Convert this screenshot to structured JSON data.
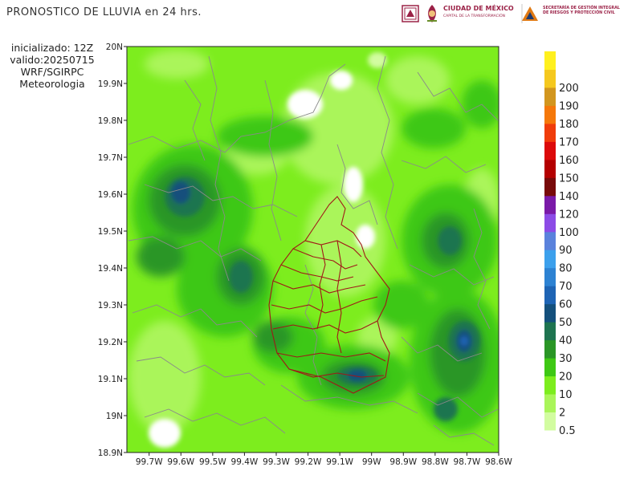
{
  "header": {
    "title": "PRONOSTICO DE LLUVIA en 24 hrs."
  },
  "run_info": {
    "line1": "inicializado: 12Z",
    "line2": "valido:20250715",
    "line3": "WRF/SGIRPC",
    "line4": "Meteorologia"
  },
  "logos": {
    "cdmx_name": "CIUDAD DE MÉXICO",
    "cdmx_tagline": "CAPITAL DE LA TRANSFORMACIÓN",
    "sgirpc_line1": "SECRETARÍA DE GESTIÓN INTEGRAL",
    "sgirpc_line2": "DE RIESGOS Y PROTECCIÓN CIVIL",
    "brand_color": "#9b2247"
  },
  "map": {
    "lat_ticks": [
      "20N",
      "19.9N",
      "19.8N",
      "19.7N",
      "19.6N",
      "19.5N",
      "19.4N",
      "19.3N",
      "19.2N",
      "19.1N",
      "19N",
      "18.9N"
    ],
    "lon_ticks": [
      "99.7W",
      "99.6W",
      "99.5W",
      "99.4W",
      "99.3W",
      "99.2W",
      "99.1W",
      "99W",
      "98.9W",
      "98.8W",
      "98.7W",
      "98.6W"
    ],
    "lat_range": [
      18.9,
      20.0
    ],
    "lon_range": [
      -99.77,
      -98.6
    ]
  },
  "legend": {
    "levels": [
      "0.5",
      "2",
      "10",
      "20",
      "30",
      "40",
      "50",
      "60",
      "70",
      "80",
      "90",
      "100",
      "120",
      "140",
      "150",
      "160",
      "170",
      "180",
      "190",
      "200"
    ],
    "colors": [
      "#d2fca0",
      "#aaf55a",
      "#7ded1e",
      "#3ec814",
      "#2a9626",
      "#1e7450",
      "#14507c",
      "#1e64b4",
      "#2d82d2",
      "#3ca0ec",
      "#5a82dc",
      "#8c4be6",
      "#7a1aa8",
      "#780a0a",
      "#b40000",
      "#dc0a0a",
      "#f03c0a",
      "#f5780a",
      "#d2961e",
      "#f5c81e",
      "#fff01e"
    ]
  },
  "chart_data": {
    "type": "heatmap",
    "title": "PRONOSTICO DE LLUVIA en 24 hrs.",
    "xlabel": "",
    "ylabel": "",
    "xlim": [
      -99.77,
      -98.6
    ],
    "ylim": [
      18.9,
      20.0
    ],
    "color_levels_mm": [
      0.5,
      2,
      10,
      20,
      30,
      40,
      50,
      60,
      70,
      80,
      90,
      100,
      120,
      140,
      150,
      160,
      170,
      180,
      190,
      200
    ],
    "legend_position": "right"
  }
}
